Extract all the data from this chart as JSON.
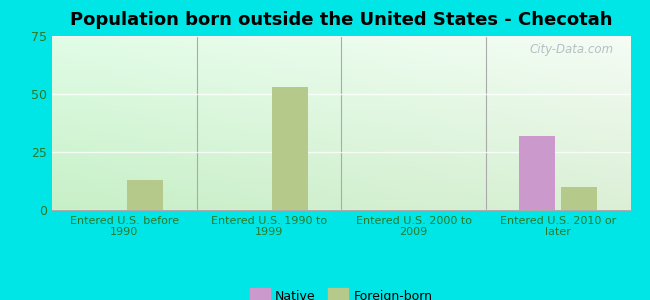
{
  "title": "Population born outside the United States - Checotah",
  "categories": [
    "Entered U.S. before\n1990",
    "Entered U.S. 1990 to\n1999",
    "Entered U.S. 2000 to\n2009",
    "Entered U.S. 2010 or\nlater"
  ],
  "native_values": [
    0,
    0,
    0,
    32
  ],
  "foreign_values": [
    13,
    53,
    0,
    10
  ],
  "native_color": "#cc99cc",
  "foreign_color": "#b5c98a",
  "ylim": [
    0,
    75
  ],
  "yticks": [
    0,
    25,
    50,
    75
  ],
  "background_outer": "#00e5e5",
  "bar_width": 0.25,
  "title_fontsize": 13,
  "tick_label_color": "#2a7a2a",
  "watermark": "City-Data.com",
  "legend_native": "Native",
  "legend_foreign": "Foreign-born"
}
